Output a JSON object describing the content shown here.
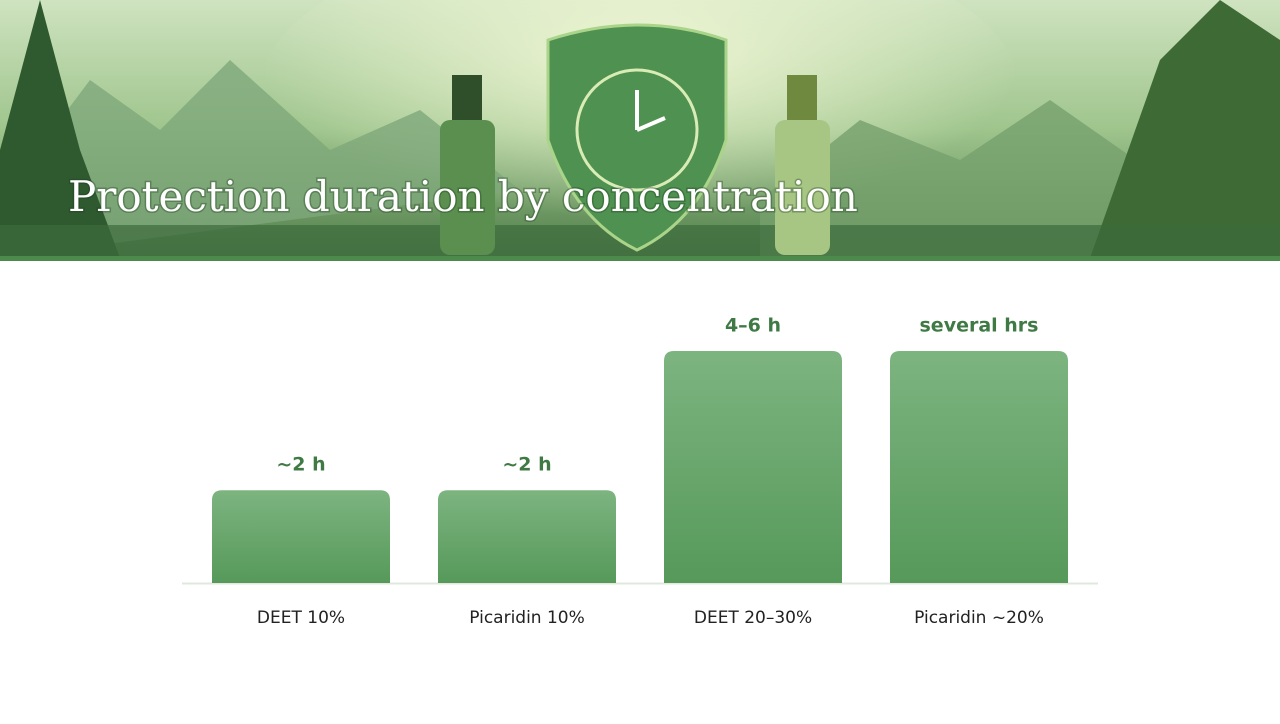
{
  "chart_data": {
    "type": "bar",
    "title": "Protection duration by concentration",
    "categories": [
      "DEET 10%",
      "Picaridin 10%",
      "DEET 20–30%",
      "Picaridin ~20%"
    ],
    "values": [
      2,
      2,
      5,
      5
    ],
    "value_labels": [
      "~2 h",
      "~2 h",
      "4–6 h",
      "several hrs"
    ],
    "color": "#65a268"
  }
}
